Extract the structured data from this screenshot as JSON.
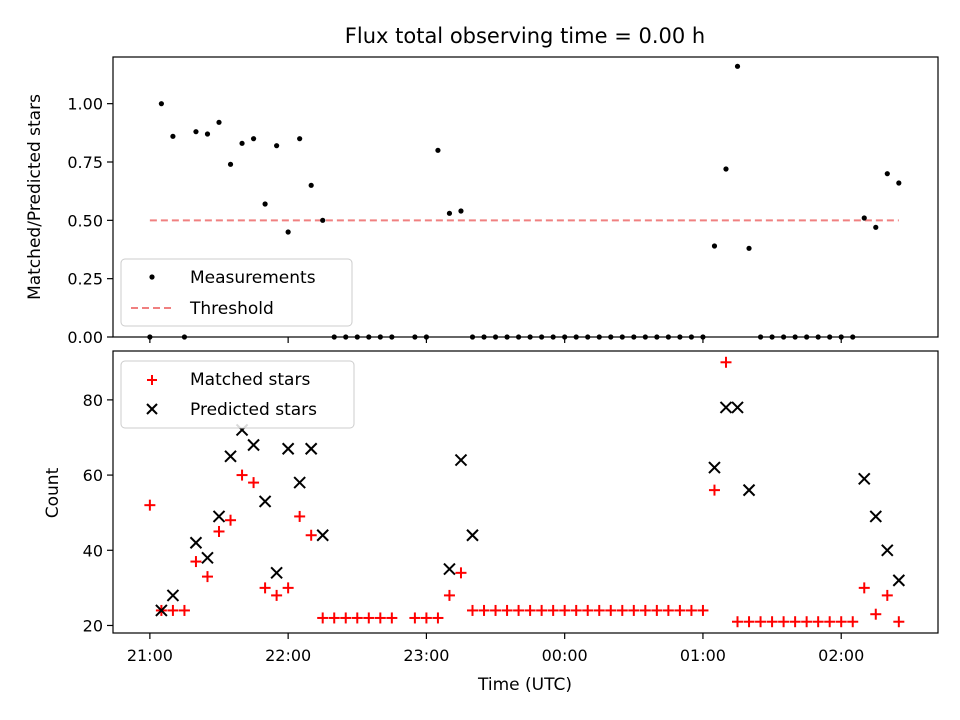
{
  "chart_data": [
    {
      "type": "scatter",
      "title": "Flux total observing time = 0.00 h",
      "xlabel": "",
      "ylabel": "Matched/Predicted stars",
      "xlim": [
        "20:44",
        "02:42"
      ],
      "ylim": [
        0,
        1.2
      ],
      "yticks": [
        0.0,
        0.25,
        0.5,
        0.75,
        1.0
      ],
      "ytick_labels": [
        "0.00",
        "0.25",
        "0.50",
        "0.75",
        "1.00"
      ],
      "legend_position": "lower-left",
      "series": [
        {
          "name": "Measurements",
          "marker": "dot",
          "color": "#000000",
          "x": [
            "21:00",
            "21:05",
            "21:10",
            "21:15",
            "21:20",
            "21:25",
            "21:30",
            "21:35",
            "21:40",
            "21:45",
            "21:50",
            "21:55",
            "22:00",
            "22:05",
            "22:10",
            "22:15",
            "22:20",
            "22:25",
            "22:30",
            "22:35",
            "22:40",
            "22:45",
            "22:55",
            "23:00",
            "23:05",
            "23:10",
            "23:15",
            "23:20",
            "23:25",
            "23:30",
            "23:35",
            "23:40",
            "23:45",
            "23:50",
            "23:55",
            "00:00",
            "00:05",
            "00:10",
            "00:15",
            "00:20",
            "00:25",
            "00:30",
            "00:35",
            "00:40",
            "00:45",
            "00:50",
            "00:55",
            "01:00",
            "01:05",
            "01:10",
            "01:15",
            "01:20",
            "01:25",
            "01:30",
            "01:35",
            "01:40",
            "01:45",
            "01:50",
            "01:55",
            "02:00",
            "02:05",
            "02:10",
            "02:15",
            "02:20",
            "02:25"
          ],
          "y": [
            0.0,
            1.0,
            0.86,
            0.0,
            0.88,
            0.87,
            0.92,
            0.74,
            0.83,
            0.85,
            0.57,
            0.82,
            0.45,
            0.85,
            0.65,
            0.5,
            0.0,
            0.0,
            0.0,
            0.0,
            0.0,
            0.0,
            0.0,
            0.0,
            0.8,
            0.53,
            0.54,
            0.0,
            0.0,
            0.0,
            0.0,
            0.0,
            0.0,
            0.0,
            0.0,
            0.0,
            0.0,
            0.0,
            0.0,
            0.0,
            0.0,
            0.0,
            0.0,
            0.0,
            0.0,
            0.0,
            0.0,
            0.0,
            0.39,
            0.72,
            1.16,
            0.38,
            0.0,
            0.0,
            0.0,
            0.0,
            0.0,
            0.0,
            0.0,
            0.0,
            0.0,
            0.51,
            0.47,
            0.7,
            0.66
          ]
        },
        {
          "name": "Threshold",
          "type": "line",
          "style": "dashed",
          "color": "#f08080",
          "x": [
            "21:00",
            "02:25"
          ],
          "y": [
            0.5,
            0.5
          ]
        }
      ]
    },
    {
      "type": "scatter",
      "title": "",
      "xlabel": "Time (UTC)",
      "ylabel": "Count",
      "xlim": [
        "20:44",
        "02:42"
      ],
      "ylim": [
        18,
        93
      ],
      "yticks": [
        20,
        40,
        60,
        80
      ],
      "xticks": [
        "21:00",
        "22:00",
        "23:00",
        "00:00",
        "01:00",
        "02:00"
      ],
      "legend_position": "upper-left",
      "series": [
        {
          "name": "Matched stars",
          "marker": "plus",
          "color": "#ff0000",
          "x": [
            "21:00",
            "21:05",
            "21:10",
            "21:15",
            "21:20",
            "21:25",
            "21:30",
            "21:35",
            "21:40",
            "21:45",
            "21:50",
            "21:55",
            "22:00",
            "22:05",
            "22:10",
            "22:15",
            "22:20",
            "22:25",
            "22:30",
            "22:35",
            "22:40",
            "22:45",
            "22:55",
            "23:00",
            "23:05",
            "23:10",
            "23:15",
            "23:20",
            "23:25",
            "23:30",
            "23:35",
            "23:40",
            "23:45",
            "23:50",
            "23:55",
            "00:00",
            "00:05",
            "00:10",
            "00:15",
            "00:20",
            "00:25",
            "00:30",
            "00:35",
            "00:40",
            "00:45",
            "00:50",
            "00:55",
            "01:00",
            "01:05",
            "01:10",
            "01:15",
            "01:20",
            "01:25",
            "01:30",
            "01:35",
            "01:40",
            "01:45",
            "01:50",
            "01:55",
            "02:00",
            "02:05",
            "02:10",
            "02:15",
            "02:20",
            "02:25"
          ],
          "y": [
            52,
            24,
            24,
            24,
            37,
            33,
            45,
            48,
            60,
            58,
            30,
            28,
            30,
            49,
            44,
            22,
            22,
            22,
            22,
            22,
            22,
            22,
            22,
            22,
            22,
            28,
            34,
            24,
            24,
            24,
            24,
            24,
            24,
            24,
            24,
            24,
            24,
            24,
            24,
            24,
            24,
            24,
            24,
            24,
            24,
            24,
            24,
            24,
            56,
            90,
            21,
            21,
            21,
            21,
            21,
            21,
            21,
            21,
            21,
            21,
            21,
            30,
            23,
            28,
            21
          ]
        },
        {
          "name": "Predicted stars",
          "marker": "x",
          "color": "#000000",
          "x": [
            "21:05",
            "21:10",
            "21:20",
            "21:25",
            "21:30",
            "21:35",
            "21:40",
            "21:45",
            "21:50",
            "21:55",
            "22:00",
            "22:05",
            "22:10",
            "22:15",
            "23:10",
            "23:15",
            "23:20",
            "01:05",
            "01:10",
            "01:15",
            "01:20",
            "02:10",
            "02:15",
            "02:20",
            "02:25"
          ],
          "y": [
            24,
            28,
            42,
            38,
            49,
            65,
            72,
            68,
            53,
            34,
            67,
            58,
            67,
            44,
            35,
            64,
            44,
            62,
            78,
            78,
            56,
            59,
            49,
            40,
            32
          ]
        }
      ]
    }
  ]
}
